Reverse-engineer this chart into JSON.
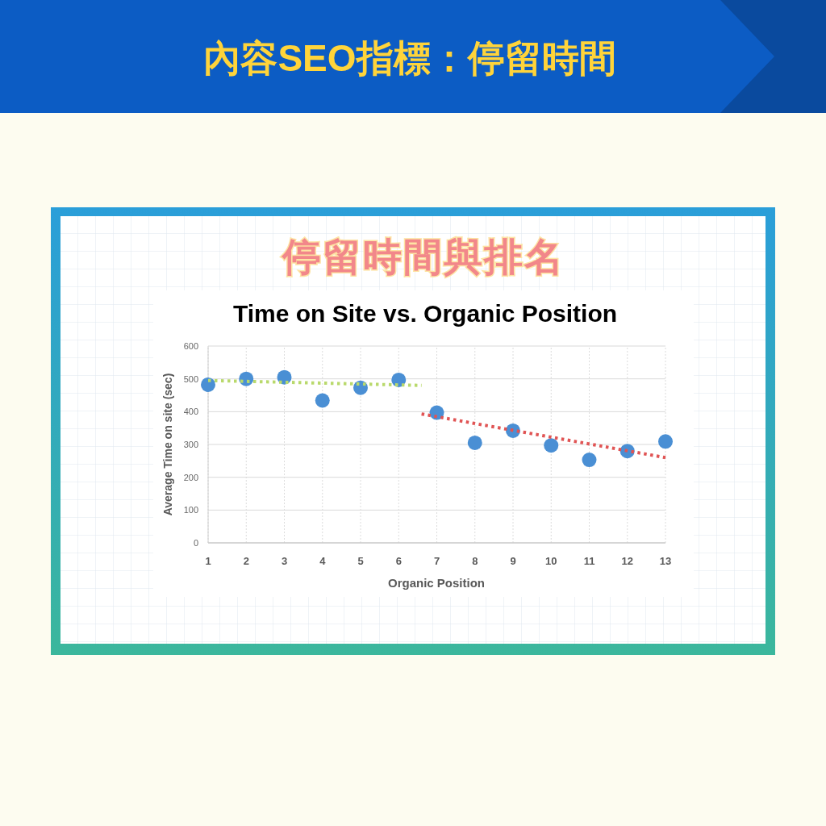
{
  "chart_data": {
    "type": "scatter",
    "title": "Time on Site vs. Organic Position",
    "subtitle": "停留時間與排名",
    "annotations": [
      "內容SEO指標：停留時間"
    ],
    "xlabel": "Organic Position",
    "ylabel": "Average Time on site (sec)",
    "xlim": [
      1,
      13
    ],
    "xticks": [
      1,
      2,
      3,
      4,
      5,
      6,
      7,
      8,
      9,
      10,
      11,
      12,
      13
    ],
    "ylim": [
      0,
      600
    ],
    "yticks": [
      0,
      100,
      200,
      300,
      400,
      500,
      600
    ],
    "grid": true,
    "series": [
      {
        "color": "#4a8fd4",
        "marker": "circle",
        "x": [
          1,
          2,
          3,
          4,
          5,
          6,
          7,
          8,
          9,
          10,
          11,
          12,
          13
        ],
        "values": [
          482,
          500,
          505,
          434,
          473,
          497,
          397,
          305,
          342,
          297,
          253,
          280,
          309
        ]
      },
      {
        "type": "line",
        "color": "#b9d96c",
        "line_style": "dotted",
        "x": [
          1,
          6.6
        ],
        "values": [
          495,
          480
        ]
      },
      {
        "type": "line",
        "color": "#e05454",
        "line_style": "dotted",
        "x": [
          6.6,
          13
        ],
        "values": [
          393,
          260
        ]
      }
    ]
  }
}
